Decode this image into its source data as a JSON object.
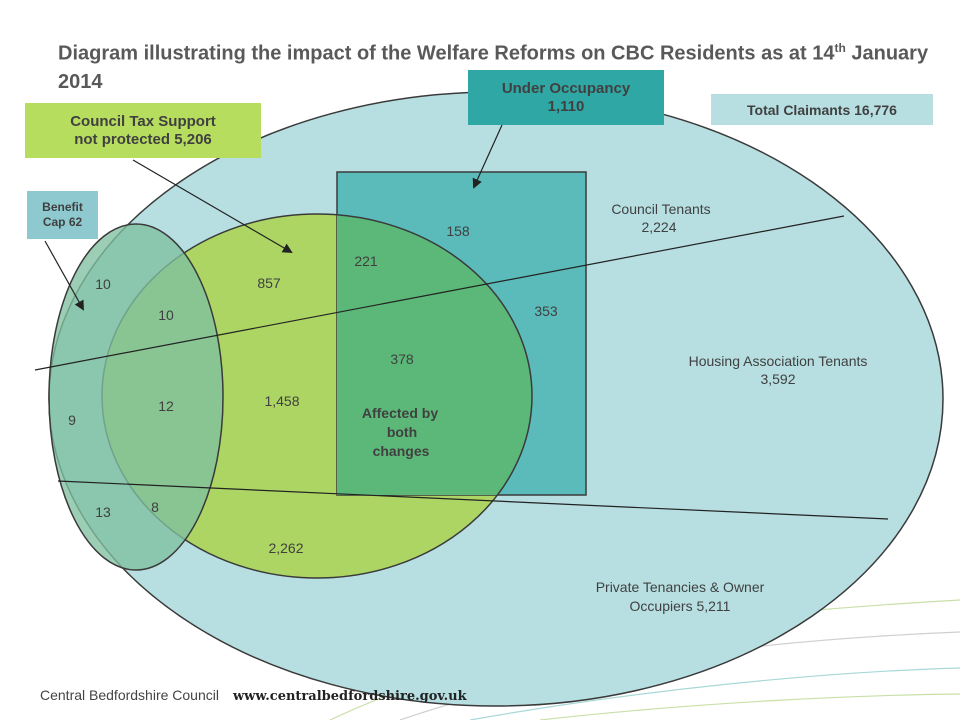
{
  "title": {
    "main": "Diagram illustrating the impact of the Welfare Reforms on CBC Residents as at 14",
    "sup": "th",
    "tail": " January 2014"
  },
  "callouts": {
    "council_tax_title": "Council Tax Support",
    "council_tax_value": "not protected 5,206",
    "under_occupancy_title": "Under Occupancy",
    "under_occupancy_value": "1,110",
    "total_claimants": "Total Claimants 16,776",
    "benefit_cap_line1": "Benefit",
    "benefit_cap_line2": "Cap 62"
  },
  "labels": {
    "council_tenants_name": "Council Tenants",
    "council_tenants_value": "2,224",
    "housing_assoc": "Housing Association Tenants",
    "housing_assoc_value": "3,592",
    "private_line1": "Private Tenancies & Owner",
    "private_line2": "Occupiers 5,211",
    "affected_line1": "Affected by",
    "affected_line2": "both",
    "affected_line3": "changes"
  },
  "numbers": {
    "n10a": "10",
    "n9": "9",
    "n13": "13",
    "n10b": "10",
    "n12": "12",
    "n8": "8",
    "n857": "857",
    "n1458": "1,458",
    "n2262": "2,262",
    "n221": "221",
    "n378": "378",
    "n158": "158",
    "n353": "353"
  },
  "footer": {
    "org": "Central Bedfordshire Council",
    "url": "www.centralbedfordshire.gov.uk"
  },
  "colors": {
    "outer_ellipse": "#b7dfe2",
    "council_tax_ellipse": "#acd563",
    "under_occupancy_rect": "#5bbbbb",
    "overlap": "#5cb878",
    "benefit_cap_ellipse": "#7fc0a0",
    "title_text": "#595959"
  }
}
